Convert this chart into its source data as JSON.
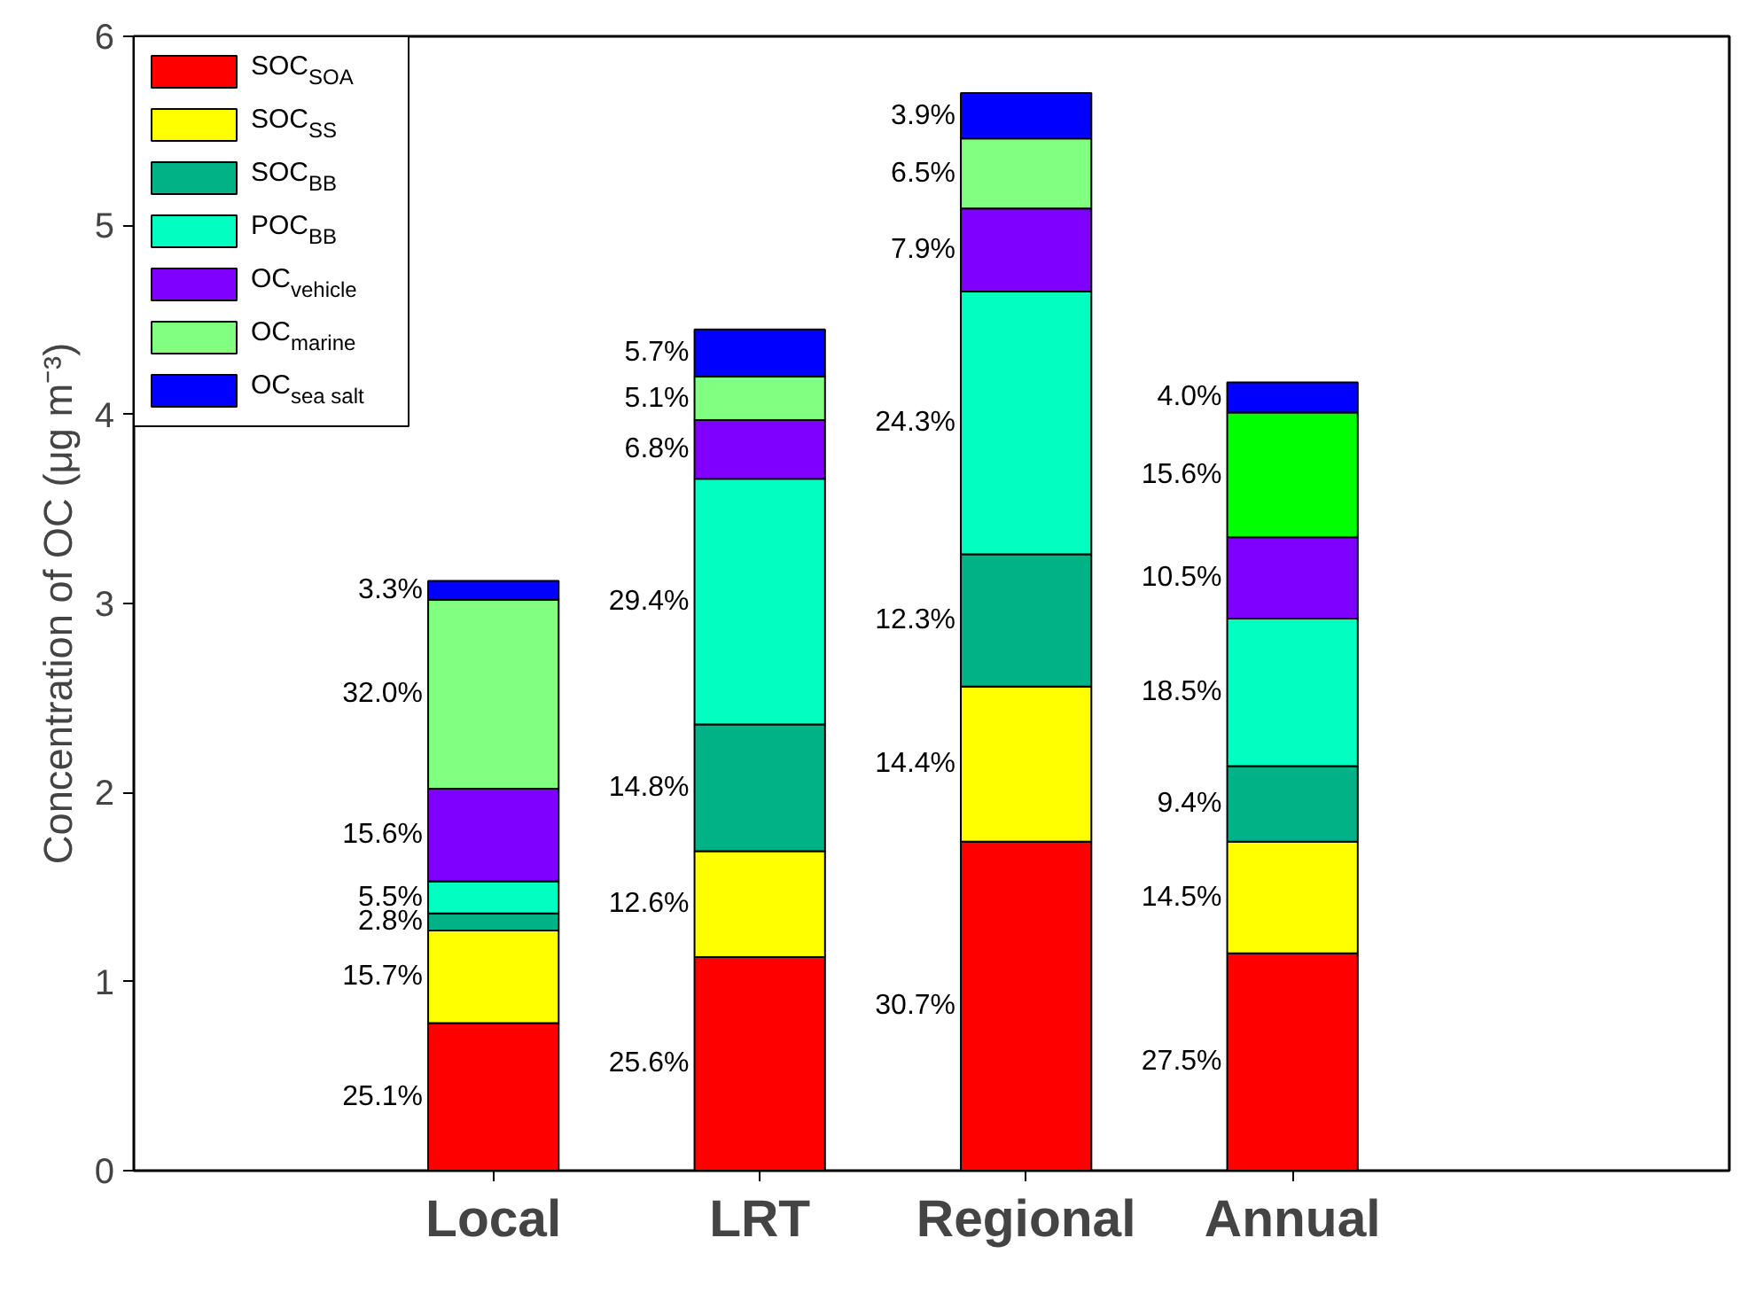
{
  "chart_data": {
    "type": "bar",
    "stacked": true,
    "ylabel": "Concentration of OC (μg m⁻³)",
    "categories": [
      "Local",
      "LRT",
      "Regional",
      "Annual"
    ],
    "series": [
      {
        "name": "SOC$_{SOA}$",
        "color": "#ff0000",
        "values": [
          0.78,
          1.13,
          1.74,
          1.15
        ]
      },
      {
        "name": "SOC$_{SS}$",
        "color": "#ffff00",
        "values": [
          0.49,
          0.56,
          0.82,
          0.59
        ]
      },
      {
        "name": "SOC$_{BB}$",
        "color": "#00b386",
        "values": [
          0.09,
          0.67,
          0.7,
          0.4
        ]
      },
      {
        "name": "POC$_{BB}$",
        "color": "#00ffc0",
        "values": [
          0.17,
          1.3,
          1.39,
          0.78
        ]
      },
      {
        "name": "OC$_{vehicle}$",
        "color": "#8000ff",
        "values": [
          0.49,
          0.31,
          0.44,
          0.43
        ]
      },
      {
        "name": "OC$_{marine}$",
        "color": "#80ff80",
        "colors": [
          "#80ff80",
          "#80ff80",
          "#80ff80",
          "#00ff00"
        ],
        "values": [
          1.0,
          0.23,
          0.37,
          0.66
        ]
      },
      {
        "name": "OC$_{sea salt}$",
        "color": "#0000ff",
        "values": [
          0.1,
          0.25,
          0.24,
          0.16
        ]
      }
    ],
    "annotations": [
      "25.1%",
      "15.7%",
      "2.8%",
      "5.5%",
      "15.6%",
      "32.0%",
      "3.3%",
      "25.6%",
      "12.6%",
      "14.8%",
      "29.4%",
      "6.8%",
      "5.1%",
      "5.7%",
      "30.7%",
      "14.4%",
      "12.3%",
      "24.3%",
      "7.9%",
      "6.5%",
      "3.9%",
      "27.5%",
      "14.5%",
      "9.4%",
      "18.5%",
      "10.5%",
      "15.6%",
      "4.0%"
    ],
    "ylim": [
      0,
      6
    ],
    "yticks": [
      0,
      1,
      2,
      3,
      4,
      5,
      6
    ],
    "grid": false,
    "legend": "top left"
  }
}
